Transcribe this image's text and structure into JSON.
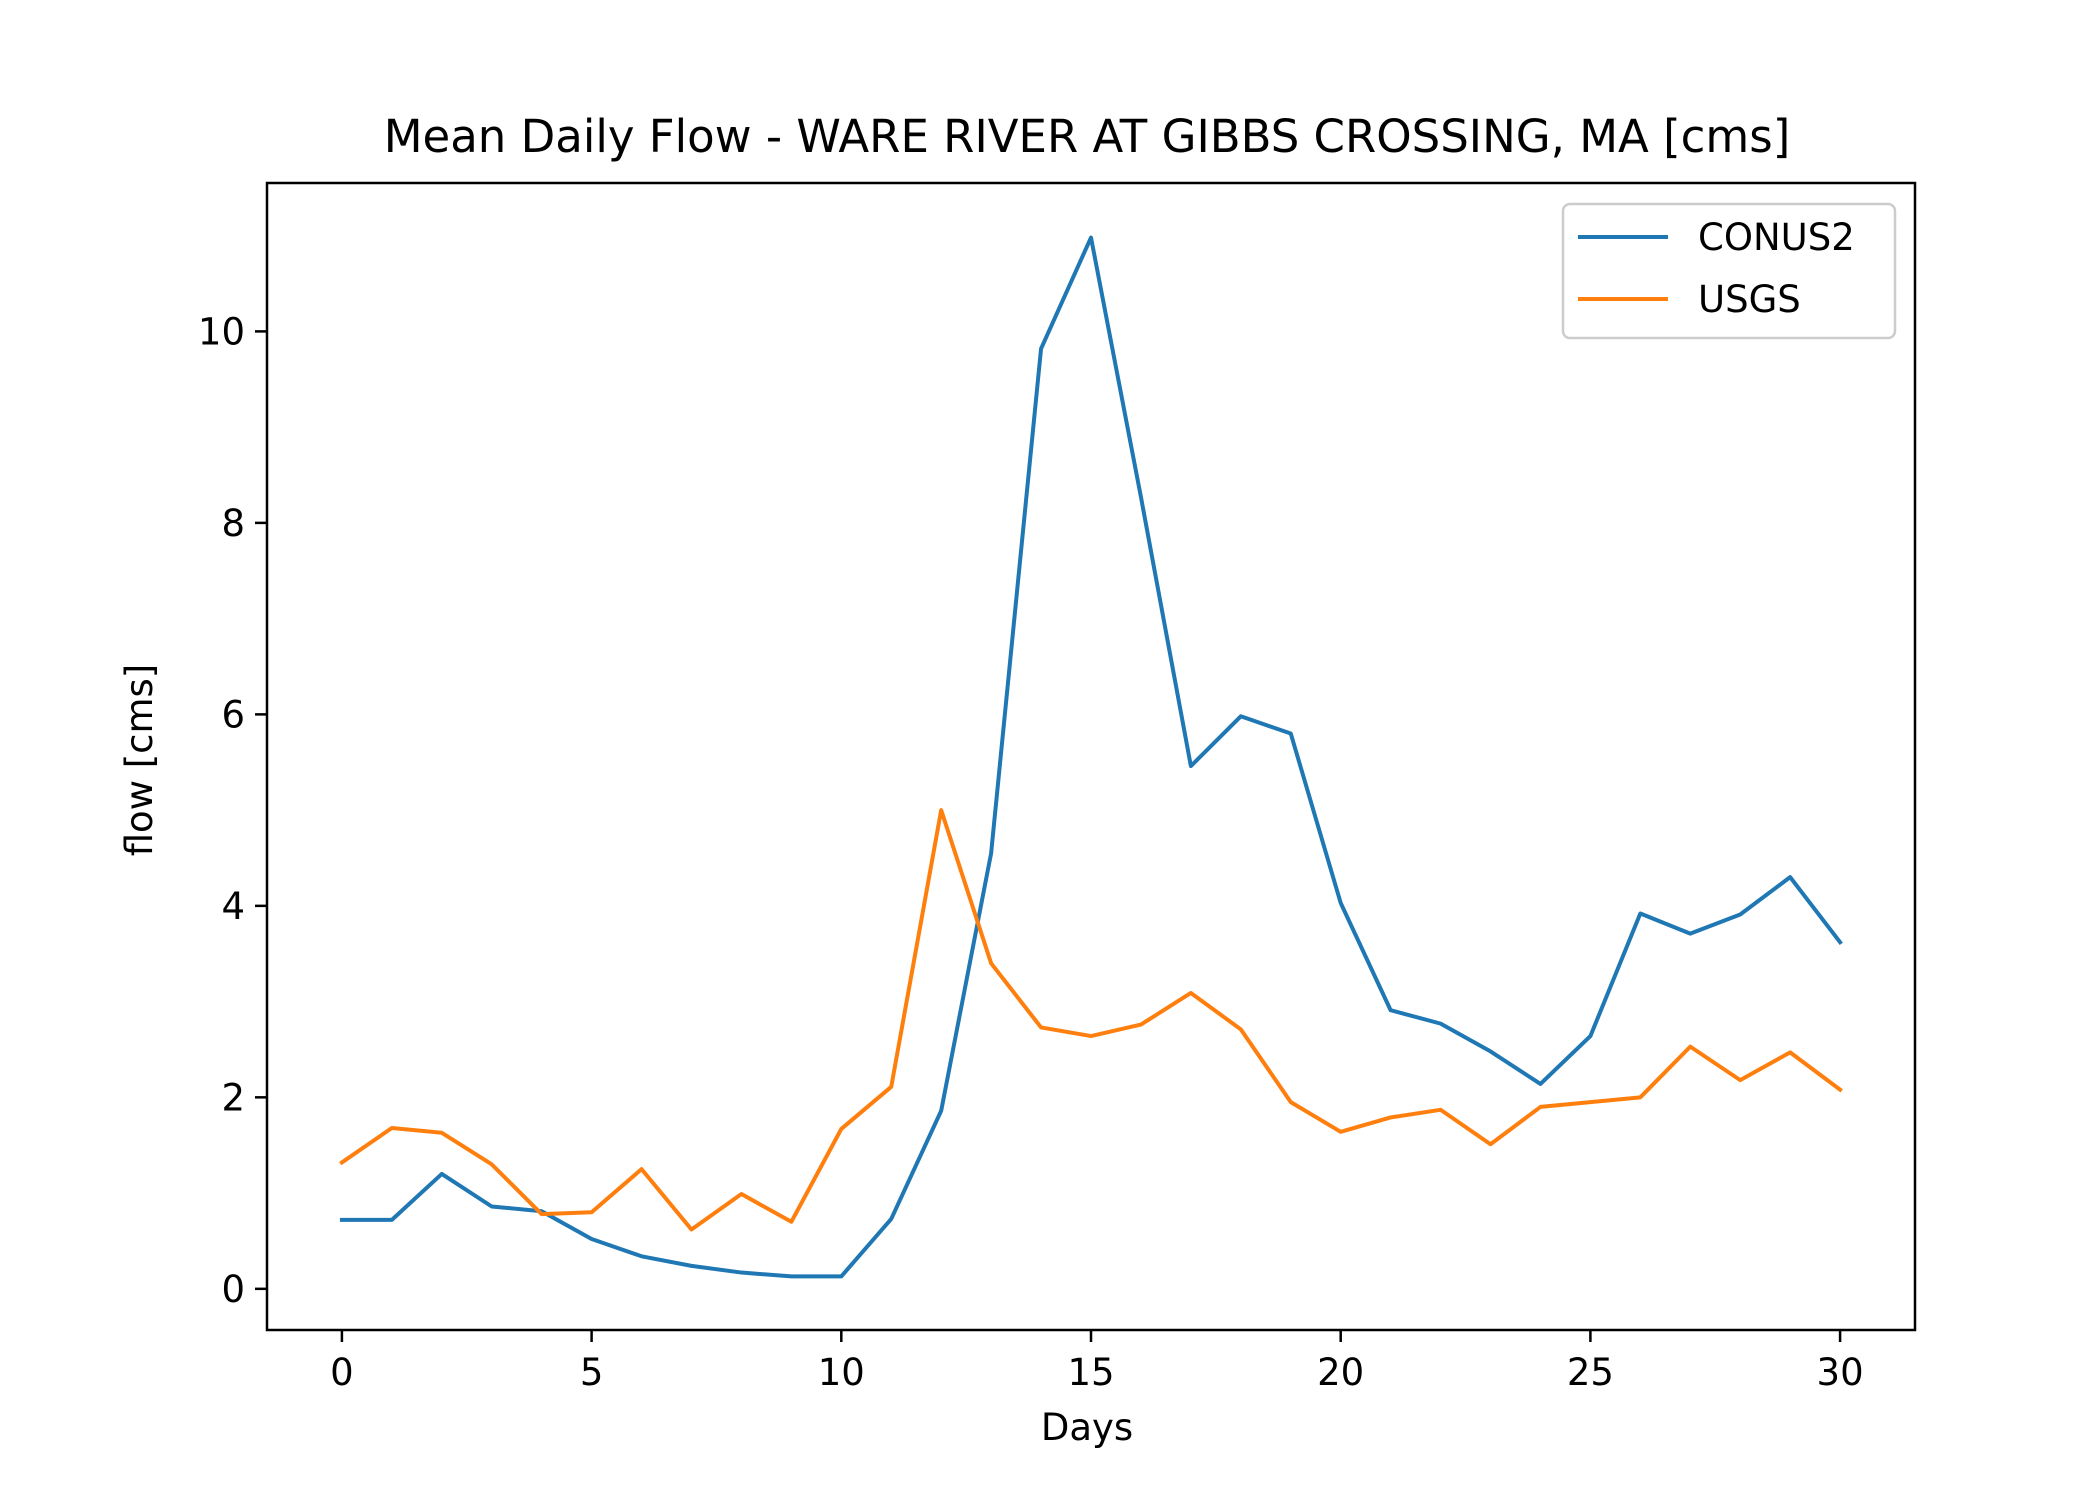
{
  "chart_data": {
    "type": "line",
    "title": "Mean Daily Flow - WARE RIVER AT GIBBS CROSSING, MA [cms]",
    "xlabel": "Days",
    "ylabel": "flow [cms]",
    "xlim": [
      -1.5,
      31.5
    ],
    "ylim": [
      -0.43,
      11.55
    ],
    "xticks": [
      0,
      5,
      10,
      15,
      20,
      25,
      30
    ],
    "yticks": [
      0,
      2,
      4,
      6,
      8,
      10
    ],
    "x": [
      0,
      1,
      2,
      3,
      4,
      5,
      6,
      7,
      8,
      9,
      10,
      11,
      12,
      13,
      14,
      15,
      16,
      17,
      18,
      19,
      20,
      21,
      22,
      23,
      24,
      25,
      26,
      27,
      28,
      29,
      30
    ],
    "series": [
      {
        "name": "CONUS2",
        "color": "#1f77b4",
        "values": [
          0.72,
          0.72,
          1.2,
          0.86,
          0.81,
          0.52,
          0.34,
          0.24,
          0.17,
          0.13,
          0.13,
          0.73,
          1.86,
          4.55,
          9.82,
          10.98,
          8.27,
          5.46,
          5.98,
          5.8,
          4.03,
          2.91,
          2.77,
          2.48,
          2.14,
          2.64,
          3.92,
          3.71,
          3.91,
          4.3,
          3.62
        ]
      },
      {
        "name": "USGS",
        "color": "#ff7f0e",
        "values": [
          1.32,
          1.68,
          1.63,
          1.3,
          0.78,
          0.8,
          1.25,
          0.62,
          0.99,
          0.7,
          1.67,
          2.11,
          5.0,
          3.4,
          2.73,
          2.64,
          2.76,
          3.09,
          2.71,
          1.95,
          1.64,
          1.79,
          1.87,
          1.51,
          1.9,
          1.95,
          2.0,
          2.53,
          2.18,
          2.47,
          2.08
        ]
      }
    ],
    "legend_position": "top-right",
    "grid": false
  }
}
